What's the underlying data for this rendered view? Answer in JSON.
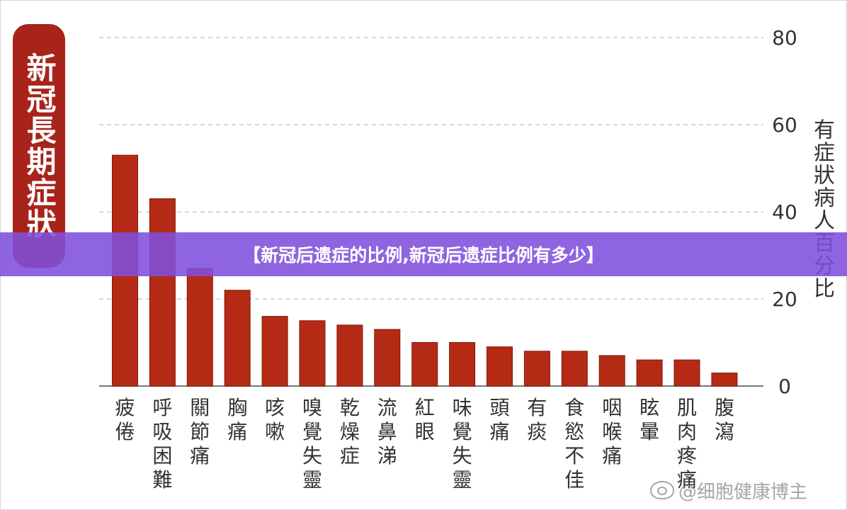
{
  "page": {
    "side_title": "新冠長期症狀",
    "banner": "【新冠后遗症的比例,新冠后遗症比例有多少】",
    "watermark": "@细胞健康博主",
    "watermark_icon": "weibo-icon"
  },
  "chart_data": {
    "type": "bar",
    "title": "新冠長期症狀",
    "xlabel": "",
    "ylabel": "有症狀病人百分比",
    "ylim": [
      0,
      80
    ],
    "yticks": [
      0,
      20,
      40,
      60,
      80
    ],
    "y_axis_side": "right",
    "grid": true,
    "grid_style": "dashed",
    "bar_color": "#b52a14",
    "categories": [
      "疲倦",
      "呼吸困難",
      "關節痛",
      "胸痛",
      "咳嗽",
      "嗅覺失靈",
      "乾燥症",
      "流鼻涕",
      "紅眼",
      "味覺失靈",
      "頭痛",
      "有痰",
      "食慾不佳",
      "咽喉痛",
      "眩暈",
      "肌肉疼痛",
      "腹瀉"
    ],
    "values": [
      53,
      43,
      27,
      22,
      16,
      15,
      14,
      13,
      10,
      10,
      9,
      8,
      8,
      7,
      6,
      6,
      3
    ]
  }
}
